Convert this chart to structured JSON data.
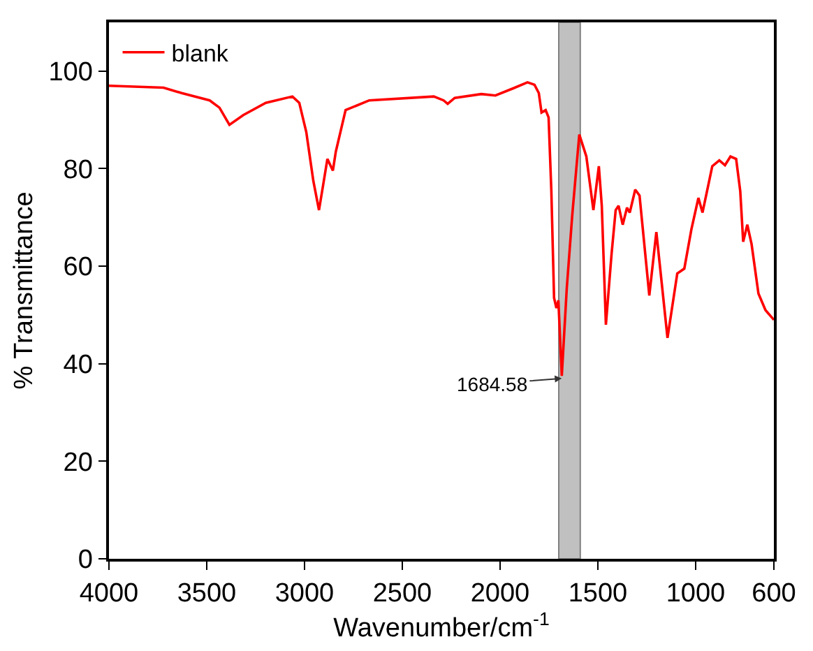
{
  "chart_data": {
    "type": "line",
    "xlabel": "Wavenumber/cm$^{-1}$",
    "ylabel": "% Transmittance",
    "xlim": [
      4000,
      600
    ],
    "ylim": [
      0,
      110
    ],
    "xticks": [
      4000,
      3500,
      3000,
      2500,
      2000,
      1500,
      1000,
      600
    ],
    "yticks": [
      0,
      20,
      40,
      60,
      80,
      100
    ],
    "legend": "top left",
    "grid": false,
    "marker": "none",
    "line_style": "solid",
    "bands": [
      {
        "axis": "x",
        "from": 1700,
        "to": 1590,
        "color": "#c0c0c0"
      }
    ],
    "annotations": [
      {
        "text": "1684.58",
        "x": 1684.58,
        "y": 37
      }
    ],
    "series": [
      {
        "name": "blank",
        "color": "#ff0000",
        "x": [
          4000,
          3721,
          3628,
          3485,
          3435,
          3384,
          3313,
          3198,
          3062,
          3027,
          2991,
          2955,
          2926,
          2905,
          2883,
          2855,
          2840,
          2790,
          2669,
          2339,
          2289,
          2268,
          2232,
          2096,
          2024,
          1931,
          1860,
          1824,
          1802,
          1788,
          1767,
          1752,
          1738,
          1724,
          1712,
          1702,
          1684.58,
          1659,
          1631,
          1595,
          1559,
          1523,
          1495,
          1480,
          1459,
          1430,
          1409,
          1394,
          1373,
          1351,
          1337,
          1309,
          1287,
          1237,
          1201,
          1144,
          1094,
          1058,
          1022,
          986,
          965,
          915,
          879,
          850,
          822,
          793,
          772,
          757,
          736,
          714,
          679,
          643,
          600
        ],
        "values": [
          97,
          96.6,
          95.5,
          94,
          92.5,
          89,
          91,
          93.5,
          94.8,
          93.5,
          87.5,
          77.5,
          71.5,
          76.6,
          82,
          79.6,
          83.5,
          92,
          94,
          94.8,
          94,
          93.3,
          94.5,
          95.3,
          95,
          96.5,
          97.7,
          97.2,
          95.5,
          91.5,
          92,
          90.5,
          75.5,
          53.5,
          51.4,
          53,
          37.5,
          55.5,
          70.5,
          87,
          82.5,
          71.5,
          80.5,
          72.4,
          48,
          62.5,
          71.5,
          72.4,
          68.5,
          72,
          71,
          75.7,
          74.5,
          54,
          67,
          45.3,
          58.5,
          59.5,
          67.5,
          74,
          71,
          80.5,
          81.7,
          80.7,
          82.5,
          82,
          75.4,
          65,
          68.5,
          64.5,
          54.4,
          51,
          49
        ]
      }
    ]
  }
}
